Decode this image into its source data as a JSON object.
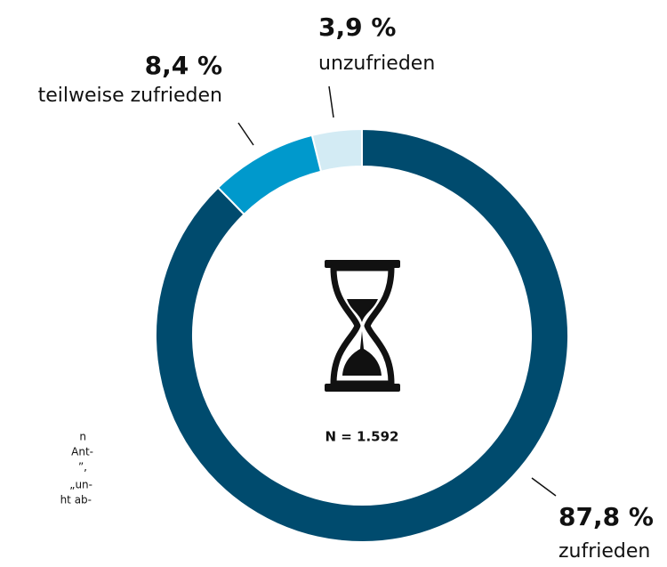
{
  "chart_data": {
    "type": "donut",
    "categories": [
      "zufrieden",
      "teilweise zufrieden",
      "unzufrieden"
    ],
    "values": [
      87.8,
      8.4,
      3.9
    ],
    "value_labels": [
      "87,8 %",
      "8,4 %",
      "3,9 %"
    ],
    "colors": [
      "#004b6e",
      "#0099cc",
      "#d3ebf4"
    ],
    "center_label": "N = 1.592",
    "note_lines": [
      "n",
      "Ant-",
      "”,",
      "„un-",
      "ht ab-"
    ]
  }
}
